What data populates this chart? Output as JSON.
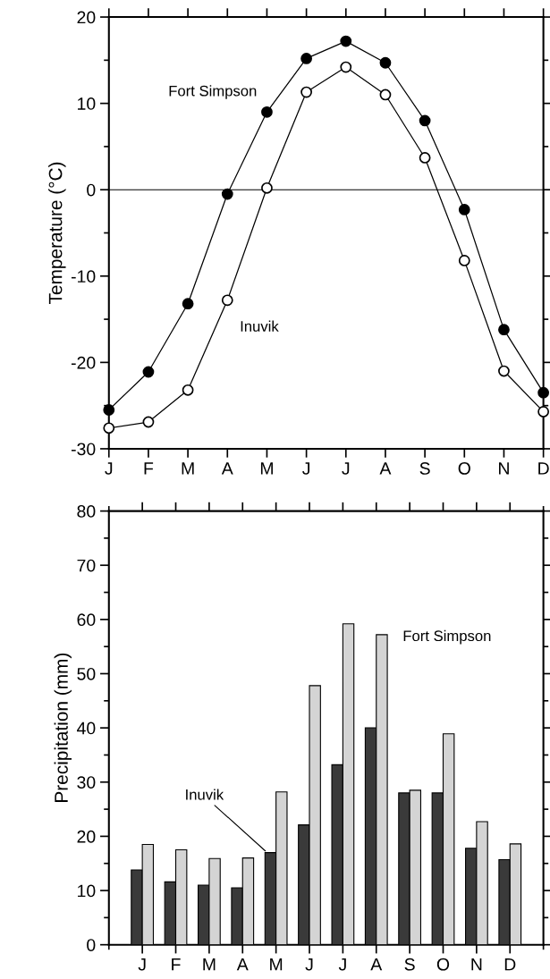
{
  "chart_data": [
    {
      "type": "line",
      "ylabel": "Temperature (°C)",
      "categories": [
        "J",
        "F",
        "M",
        "A",
        "M",
        "J",
        "J",
        "A",
        "S",
        "O",
        "N",
        "D"
      ],
      "ylim": [
        -30,
        20
      ],
      "yticks": [
        -30,
        -20,
        -10,
        0,
        10,
        20
      ],
      "grid": false,
      "legend": false,
      "line_style": "solid",
      "ref_lines": [
        {
          "axis": "y",
          "value": 0,
          "color": "#000000"
        }
      ],
      "series": [
        {
          "name": "Fort Simpson",
          "color": "#000000",
          "marker": "circle",
          "values": [
            -25.5,
            -21.1,
            -13.2,
            -0.5,
            9.0,
            15.2,
            17.2,
            14.7,
            8.0,
            -2.3,
            -16.2,
            -23.5
          ]
        },
        {
          "name": "Inuvik",
          "color": "#000000",
          "marker": "circle",
          "values": [
            -27.6,
            -26.9,
            -23.2,
            -12.8,
            0.2,
            11.3,
            14.2,
            11.0,
            3.7,
            -8.2,
            -21.0,
            -25.7
          ]
        }
      ]
    },
    {
      "type": "bar",
      "ylabel": "Precipitation (mm)",
      "categories": [
        "J",
        "F",
        "M",
        "A",
        "M",
        "J",
        "J",
        "A",
        "S",
        "O",
        "N",
        "D"
      ],
      "ylim": [
        0,
        80
      ],
      "yticks": [
        0,
        10,
        20,
        30,
        40,
        50,
        60,
        70,
        80
      ],
      "grid": false,
      "legend": false,
      "series": [
        {
          "name": "Inuvik",
          "color": "#3a3a3a",
          "values": [
            13.8,
            11.6,
            11.0,
            10.5,
            17.0,
            22.1,
            33.2,
            40.0,
            28.0,
            28.0,
            17.8,
            15.7
          ]
        },
        {
          "name": "Fort Simpson",
          "color": "#d4d4d4",
          "values": [
            18.5,
            17.5,
            15.9,
            16.0,
            28.2,
            47.8,
            59.2,
            57.2,
            28.5,
            38.9,
            22.7,
            18.6
          ]
        }
      ]
    }
  ]
}
